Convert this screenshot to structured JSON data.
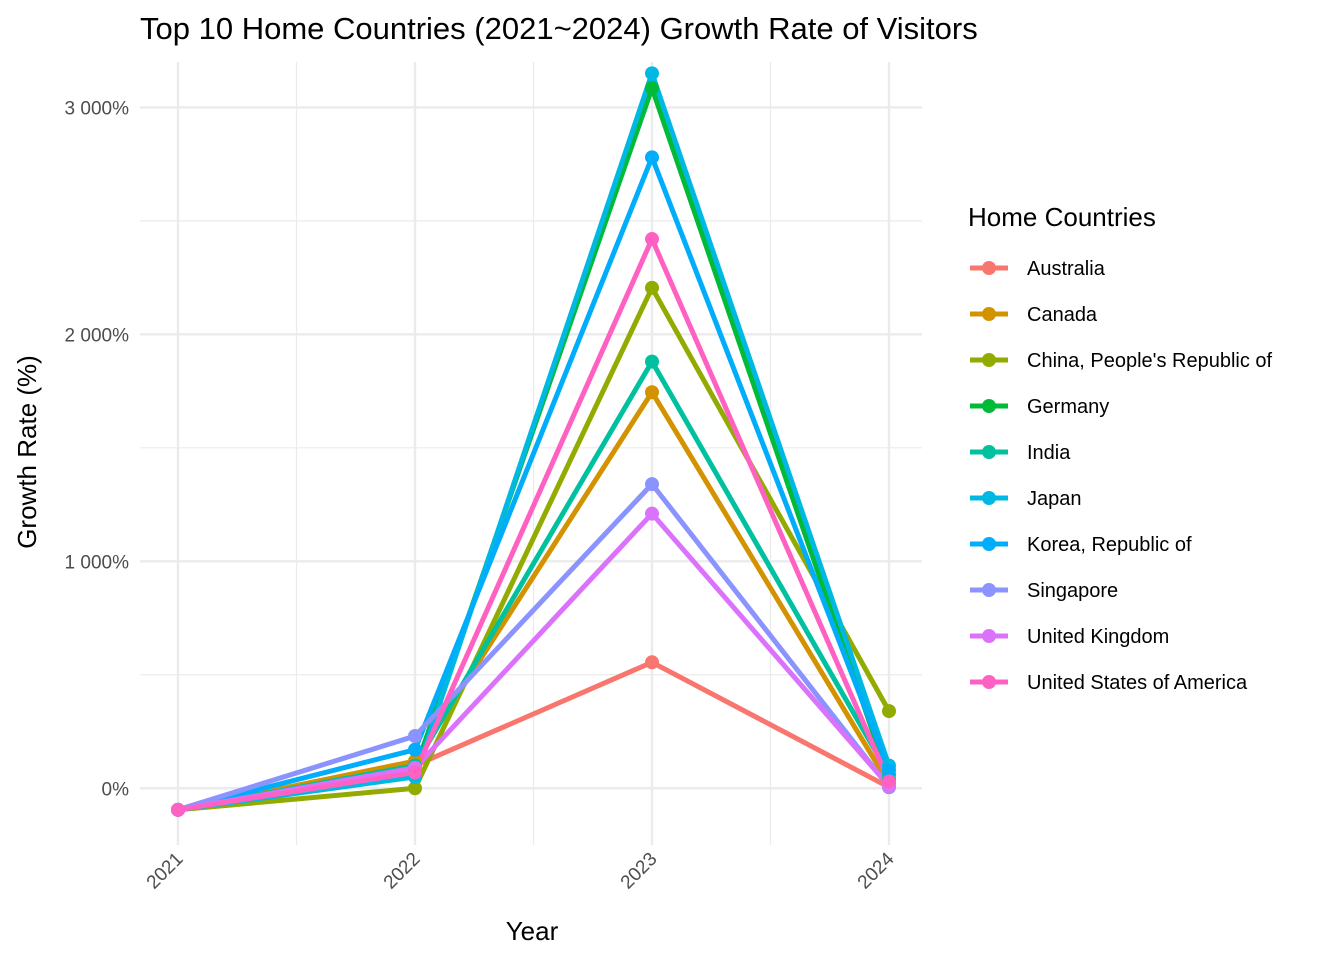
{
  "chart_data": {
    "type": "line",
    "title": "Top 10 Home Countries (2021~2024) Growth Rate of Visitors",
    "xlabel": "Year",
    "ylabel": "Growth Rate (%)",
    "x": [
      "2021",
      "2022",
      "2023",
      "2024"
    ],
    "ylim": [
      -250,
      3200
    ],
    "y_ticks": [
      0,
      1000,
      2000,
      3000
    ],
    "y_tick_labels": [
      "0%",
      "1 000%",
      "2 000%",
      "3 000%"
    ],
    "grid": true,
    "legend": {
      "title": "Home Countries",
      "position": "right"
    },
    "series": [
      {
        "name": "Australia",
        "color": "#F8766D",
        "values": [
          -95,
          100,
          555,
          5
        ]
      },
      {
        "name": "Canada",
        "color": "#D39200",
        "values": [
          -95,
          120,
          1745,
          20
        ]
      },
      {
        "name": "China, People's Republic of",
        "color": "#93AA00",
        "values": [
          -95,
          0,
          2205,
          340
        ]
      },
      {
        "name": "Germany",
        "color": "#00BA38",
        "values": [
          -95,
          80,
          3085,
          40
        ]
      },
      {
        "name": "India",
        "color": "#00C19F",
        "values": [
          -95,
          100,
          1880,
          60
        ]
      },
      {
        "name": "Japan",
        "color": "#00B9E3",
        "values": [
          -95,
          50,
          3150,
          100
        ]
      },
      {
        "name": "Korea, Republic of",
        "color": "#00ADFA",
        "values": [
          -95,
          170,
          2780,
          80
        ]
      },
      {
        "name": "Singapore",
        "color": "#8B93FF",
        "values": [
          -95,
          230,
          1340,
          5
        ]
      },
      {
        "name": "United Kingdom",
        "color": "#DB72FB",
        "values": [
          -95,
          90,
          1210,
          10
        ]
      },
      {
        "name": "United States of America",
        "color": "#FF61C3",
        "values": [
          -95,
          70,
          2420,
          30
        ]
      }
    ]
  }
}
